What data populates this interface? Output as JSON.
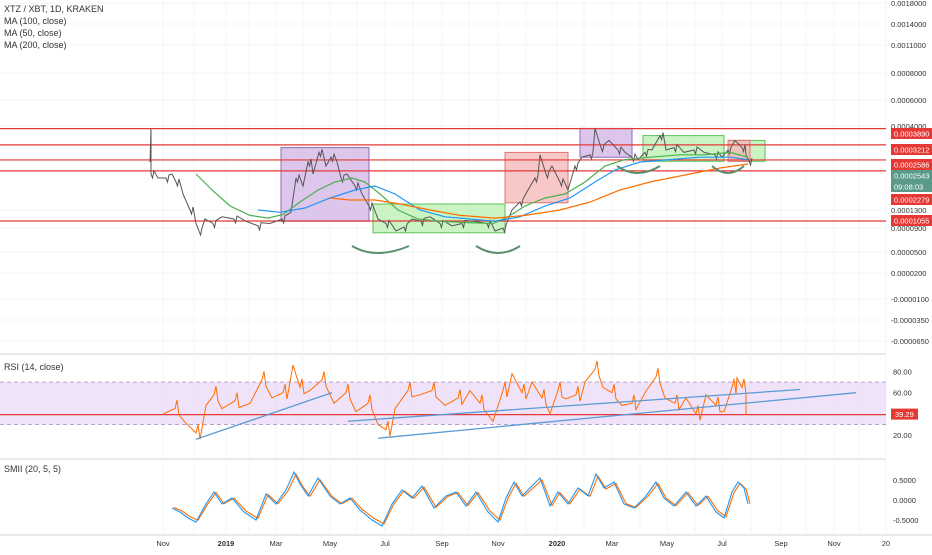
{
  "main_pane": {
    "symbol_line": "XTZ / XBT, 1D, KRAKEN",
    "indicators": [
      "MA (100, close)",
      "MA (50, close)",
      "MA (200, close)"
    ],
    "y_ticks": [
      "0.0018000",
      "0.0014000",
      "0.0011000",
      "0.0008000",
      "0.0006000",
      "0.0004000",
      "0.0002500",
      "0.0001300",
      "0.0000900",
      "0.0000500",
      "0.0000200",
      "-0.0000100",
      "-0.0000350",
      "-0.0000650"
    ],
    "price_labels": [
      {
        "text": "0.0003890",
        "bg": "#e53935"
      },
      {
        "text": "0.0003212",
        "bg": "#e53935"
      },
      {
        "text": "0.0002586",
        "bg": "#e53935"
      },
      {
        "text": "0.0002543",
        "bg": "#5b9a8b"
      },
      {
        "text": "09:08:03",
        "bg": "#5b9a8b"
      },
      {
        "text": "0.0002279",
        "bg": "#e53935"
      },
      {
        "text": "0.0001055",
        "bg": "#e53935"
      }
    ]
  },
  "rsi_pane": {
    "title": "RSI (14, close)",
    "y_ticks": [
      "80.00",
      "60.00",
      "20.00"
    ],
    "current_label": "39.29"
  },
  "smii_pane": {
    "title": "SMII (20, 5, 5)",
    "y_ticks": [
      "0.5000",
      "0.0000",
      "-0.5000"
    ]
  },
  "x_axis": {
    "labels": [
      "Nov",
      "2019",
      "Mar",
      "May",
      "Jul",
      "Sep",
      "Nov",
      "2020",
      "Mar",
      "May",
      "Jul",
      "Sep",
      "Nov",
      "20"
    ]
  },
  "colors": {
    "resistance": "#e53935",
    "price": "#555555",
    "ma50": "#4caf50",
    "ma100": "#2196f3",
    "ma200": "#ff6d00",
    "rsi_line": "#ff6d00",
    "rsi_band": "#e9d6f5",
    "trend": "#5b9bd5",
    "smii_a": "#2196f3",
    "smii_b": "#ff6d00",
    "zone_purple": "#d1b3e6",
    "zone_green": "#b9f0b0",
    "zone_red": "#f5b5b5",
    "last_price_bg": "#5b9a8b"
  },
  "chart_data": {
    "type": "line",
    "price_series": {
      "name": "XTZ / XBT",
      "x": [
        "2018-11",
        "2018-12",
        "2019-01",
        "2019-02",
        "2019-03",
        "2019-04",
        "2019-05",
        "2019-06",
        "2019-07",
        "2019-08",
        "2019-09",
        "2019-10",
        "2019-11",
        "2019-12",
        "2020-01",
        "2020-02",
        "2020-03",
        "2020-04",
        "2020-05",
        "2020-06",
        "2020-07",
        "2020-08"
      ],
      "values": [
        0.00025,
        0.00013,
        0.00011,
        0.00011,
        0.00011,
        0.00028,
        0.00023,
        0.00013,
        9e-05,
        0.0001,
        0.0001,
        0.0001,
        0.00012,
        0.00021,
        0.0002,
        0.00029,
        0.00032,
        0.00028,
        0.0003,
        0.00029,
        0.00026,
        0.00025
      ]
    },
    "horizontal_levels": [
      0.000389,
      0.0003212,
      0.0002586,
      0.0002279,
      0.0001055
    ],
    "rsi": {
      "x": [
        "2018-11",
        "2018-12",
        "2019-01",
        "2019-02",
        "2019-03",
        "2019-04",
        "2019-05",
        "2019-06",
        "2019-07",
        "2019-08",
        "2019-09",
        "2019-10",
        "2019-11",
        "2019-12",
        "2020-01",
        "2020-02",
        "2020-03",
        "2020-04",
        "2020-05",
        "2020-06",
        "2020-07",
        "2020-08"
      ],
      "values": [
        40,
        25,
        50,
        40,
        55,
        75,
        60,
        45,
        30,
        45,
        55,
        40,
        35,
        70,
        55,
        65,
        75,
        50,
        55,
        50,
        65,
        39.29
      ],
      "band": [
        30,
        70
      ]
    },
    "smii": {
      "x": [
        "2018-11",
        "2018-12",
        "2019-01",
        "2019-02",
        "2019-03",
        "2019-04",
        "2019-05",
        "2019-06",
        "2019-07",
        "2019-08",
        "2019-09",
        "2019-10",
        "2019-11",
        "2019-12",
        "2020-01",
        "2020-02",
        "2020-03",
        "2020-04",
        "2020-05",
        "2020-06",
        "2020-07",
        "2020-08"
      ],
      "values": [
        -0.2,
        -0.5,
        0.2,
        -0.3,
        0.1,
        0.6,
        0.2,
        -0.2,
        -0.6,
        0.1,
        0.3,
        -0.3,
        0.0,
        0.4,
        0.1,
        0.2,
        0.6,
        -0.1,
        0.3,
        0.2,
        0.5,
        -0.1
      ]
    }
  }
}
